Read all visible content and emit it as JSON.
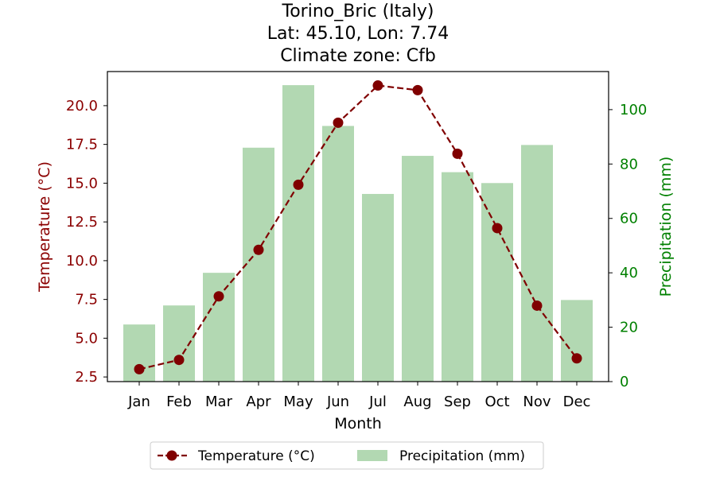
{
  "chart_data": {
    "type": "bar+line",
    "title_lines": [
      "Torino_Bric (Italy)",
      "Lat: 45.10, Lon: 7.74",
      "Climate zone: Cfb"
    ],
    "xlabel": "Month",
    "ylabel_left": "Temperature (°C)",
    "ylabel_right": "Precipitation (mm)",
    "categories": [
      "Jan",
      "Feb",
      "Mar",
      "Apr",
      "May",
      "Jun",
      "Jul",
      "Aug",
      "Sep",
      "Oct",
      "Nov",
      "Dec"
    ],
    "y_left_lim": [
      2.2,
      22.2
    ],
    "y_left_ticks": [
      2.5,
      5.0,
      7.5,
      10.0,
      12.5,
      15.0,
      17.5,
      20.0
    ],
    "y_left_tick_labels": [
      "2.5",
      "5.0",
      "7.5",
      "10.0",
      "12.5",
      "15.0",
      "17.5",
      "20.0"
    ],
    "y_right_lim": [
      0,
      114
    ],
    "y_right_ticks": [
      0,
      20,
      40,
      60,
      80,
      100
    ],
    "y_right_tick_labels": [
      "0",
      "20",
      "40",
      "60",
      "80",
      "100"
    ],
    "grid": false,
    "legend_placement": "bottom-center, below plot",
    "series": [
      {
        "name": "Temperature (°C)",
        "type": "line",
        "axis": "left",
        "style": "dashed with circle markers",
        "color": "#800000",
        "values": [
          3.0,
          3.6,
          7.7,
          10.7,
          14.9,
          18.9,
          21.3,
          21.0,
          16.9,
          12.1,
          7.1,
          3.7
        ]
      },
      {
        "name": "Precipitation (mm)",
        "type": "bar",
        "axis": "right",
        "color": "#b2d8b2",
        "values": [
          21,
          28,
          40,
          86,
          109,
          94,
          69,
          83,
          77,
          73,
          87,
          30
        ]
      }
    ],
    "colors": {
      "left_axis": "#8b0000",
      "right_axis": "#008000",
      "temperature_line": "#800000",
      "precipitation_bar": "#b2d8b2"
    }
  }
}
